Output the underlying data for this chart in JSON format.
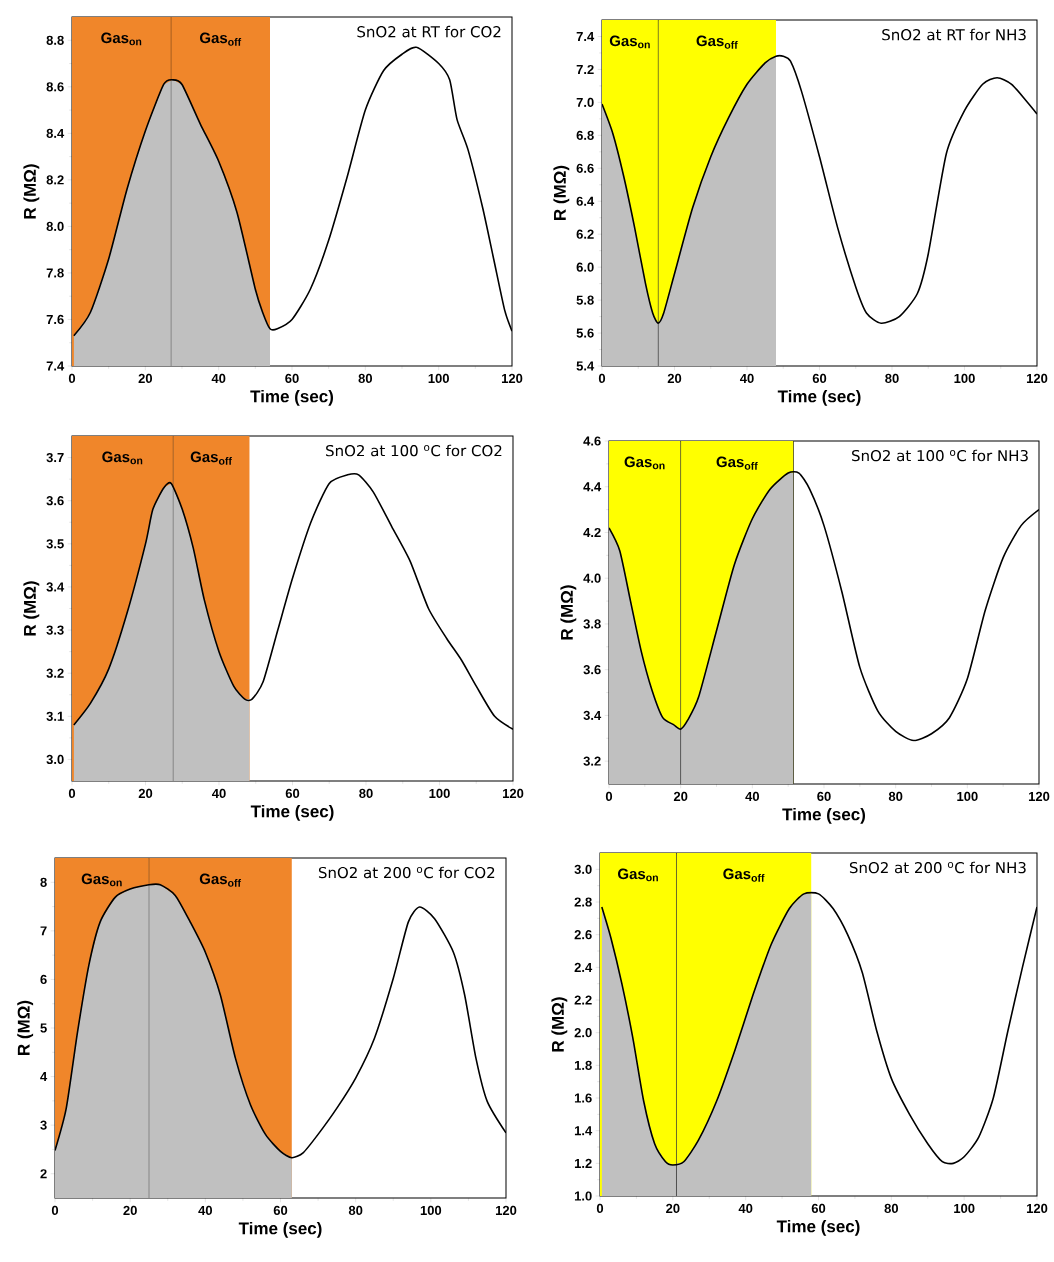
{
  "chart_data": [
    {
      "type": "line",
      "title": "SnO2 at RT for CO2",
      "xlabel": "Time (sec)",
      "ylabel": "R (MΩ)",
      "xlim": [
        0,
        120
      ],
      "ylim": [
        7.4,
        8.9
      ],
      "xticks": [
        0,
        20,
        40,
        60,
        80,
        100,
        120
      ],
      "yticks": [
        7.4,
        7.6,
        7.8,
        {
          "value": 8,
          "label": "8.0"
        },
        8.2,
        8.4,
        8.6,
        8.8
      ],
      "bands": [
        {
          "axis": "x",
          "from": 0,
          "to": 27,
          "label": "Gas$_{on}$",
          "color": "#f0862a"
        },
        {
          "axis": "x",
          "from": 27,
          "to": 54,
          "label": "Gas$_{off}$",
          "color": "#f0862a"
        }
      ],
      "ref_lines": [
        {
          "axis": "x",
          "value": 27,
          "color": "#000000"
        }
      ],
      "series": [
        {
          "type": "area",
          "color": "#c0c0c0",
          "x": [
            0.5,
            5,
            10,
            15,
            20,
            25,
            27.5,
            30,
            35,
            40,
            45,
            50,
            52,
            54
          ],
          "values": [
            7.53,
            7.63,
            7.86,
            8.16,
            8.41,
            8.61,
            8.63,
            8.61,
            8.44,
            8.28,
            8.06,
            7.73,
            7.63,
            7.56
          ]
        },
        {
          "color": "#000000",
          "x": [
            0.5,
            5,
            10,
            15,
            20,
            25,
            27.5,
            30,
            35,
            40,
            45,
            50,
            52,
            54,
            56,
            60,
            65,
            70,
            75,
            80,
            85,
            90,
            94,
            100,
            103,
            105,
            108,
            112,
            115,
            118,
            120
          ],
          "values": [
            7.53,
            7.63,
            7.86,
            8.16,
            8.41,
            8.61,
            8.63,
            8.61,
            8.44,
            8.28,
            8.06,
            7.73,
            7.63,
            7.56,
            7.56,
            7.6,
            7.73,
            7.94,
            8.21,
            8.5,
            8.67,
            8.74,
            8.77,
            8.7,
            8.63,
            8.46,
            8.33,
            8.08,
            7.86,
            7.64,
            7.55
          ]
        }
      ]
    },
    {
      "type": "line",
      "title": "SnO2 at RT for NH3",
      "xlabel": "Time (sec)",
      "ylabel": "R (MΩ)",
      "xlim": [
        0,
        120
      ],
      "ylim": [
        5.4,
        7.5
      ],
      "xticks": [
        0,
        20,
        40,
        60,
        80,
        100,
        120
      ],
      "yticks": [
        5.4,
        5.6,
        5.8,
        {
          "value": 6,
          "label": "6.0"
        },
        6.2,
        6.4,
        6.6,
        6.8,
        {
          "value": 7,
          "label": "7.0"
        },
        7.2,
        7.4
      ],
      "bands": [
        {
          "axis": "x",
          "from": 0,
          "to": 15.5,
          "label": "Gas$_{on}$",
          "color": "#ffff00"
        },
        {
          "axis": "x",
          "from": 15.5,
          "to": 48,
          "label": "Gas$_{off}$",
          "color": "#ffff00"
        }
      ],
      "ref_lines": [
        {
          "axis": "x",
          "value": 15.5,
          "color": "#000000"
        }
      ],
      "series": [
        {
          "type": "area",
          "color": "#c0c0c0",
          "x": [
            0,
            3,
            6,
            9,
            12,
            14,
            15.5,
            17,
            20,
            25,
            30,
            35,
            40,
            45,
            48
          ],
          "values": [
            6.99,
            6.81,
            6.55,
            6.24,
            5.9,
            5.72,
            5.66,
            5.72,
            5.96,
            6.36,
            6.67,
            6.91,
            7.11,
            7.24,
            7.28
          ]
        },
        {
          "color": "#000000",
          "x": [
            0,
            3,
            6,
            9,
            12,
            14,
            15.5,
            17,
            20,
            25,
            30,
            35,
            40,
            45,
            48,
            50,
            52,
            55,
            60,
            65,
            70,
            73,
            77,
            82,
            87,
            90,
            95,
            100,
            105,
            109,
            113,
            117,
            120
          ],
          "values": [
            6.99,
            6.81,
            6.55,
            6.24,
            5.9,
            5.72,
            5.66,
            5.72,
            5.96,
            6.36,
            6.67,
            6.91,
            7.11,
            7.24,
            7.28,
            7.28,
            7.25,
            7.07,
            6.67,
            6.24,
            5.88,
            5.72,
            5.66,
            5.7,
            5.84,
            6.08,
            6.69,
            6.95,
            7.11,
            7.15,
            7.11,
            7.01,
            6.93
          ]
        }
      ]
    },
    {
      "type": "line",
      "title": "SnO2 at 100 $^{o}$C  for CO2",
      "xlabel": "Time (sec)",
      "ylabel": "R (MΩ)",
      "xlim": [
        0,
        120
      ],
      "ylim": [
        2.95,
        3.75
      ],
      "xticks": [
        0,
        20,
        40,
        60,
        80,
        100,
        120
      ],
      "yticks": [
        {
          "value": 3,
          "label": "3.0"
        },
        3.1,
        3.2,
        3.3,
        3.4,
        3.5,
        3.6,
        3.7
      ],
      "bands": [
        {
          "axis": "x",
          "from": 0,
          "to": 27.5,
          "label": "Gas$_{on}$",
          "color": "#f0862a"
        },
        {
          "axis": "x",
          "from": 27.5,
          "to": 48.3,
          "label": "Gas$_{off}$",
          "color": "#f0862a"
        }
      ],
      "ref_lines": [
        {
          "axis": "x",
          "value": 27.5,
          "color": "#000000"
        }
      ],
      "series": [
        {
          "type": "area",
          "color": "#c0c0c0",
          "x": [
            0.5,
            5,
            10,
            15,
            20,
            22,
            25,
            27,
            30,
            33,
            36,
            40,
            44,
            47,
            48.3
          ],
          "values": [
            3.08,
            3.13,
            3.21,
            3.34,
            3.5,
            3.58,
            3.63,
            3.64,
            3.58,
            3.49,
            3.37,
            3.25,
            3.17,
            3.14,
            3.14
          ]
        },
        {
          "color": "#000000",
          "x": [
            0.5,
            5,
            10,
            15,
            20,
            22,
            25,
            27,
            30,
            33,
            36,
            40,
            44,
            47,
            49,
            52,
            56,
            60,
            65,
            70,
            75,
            78,
            82,
            87,
            92,
            97,
            102,
            106,
            110,
            115,
            120
          ],
          "values": [
            3.08,
            3.13,
            3.21,
            3.34,
            3.5,
            3.58,
            3.63,
            3.64,
            3.58,
            3.49,
            3.37,
            3.25,
            3.17,
            3.14,
            3.14,
            3.18,
            3.3,
            3.42,
            3.55,
            3.64,
            3.66,
            3.66,
            3.62,
            3.54,
            3.46,
            3.35,
            3.28,
            3.23,
            3.17,
            3.1,
            3.07
          ]
        }
      ]
    },
    {
      "type": "line",
      "title": "SnO2 at 100 $^{o}$C  for NH3",
      "xlabel": "Time (sec)",
      "ylabel": "R (MΩ)",
      "xlim": [
        0,
        120
      ],
      "ylim": [
        3.1,
        4.6
      ],
      "xticks": [
        0,
        20,
        40,
        60,
        80,
        100,
        120
      ],
      "yticks": [
        3.2,
        3.4,
        3.6,
        3.8,
        {
          "value": 4,
          "label": "4.0"
        },
        4.2,
        4.4,
        4.6
      ],
      "bands": [
        {
          "axis": "x",
          "from": 0,
          "to": 20,
          "label": "Gas$_{on}$",
          "color": "#ffff00"
        },
        {
          "axis": "x",
          "from": 20,
          "to": 51.5,
          "label": "Gas$_{off}$",
          "color": "#ffff00"
        }
      ],
      "ref_lines": [
        {
          "axis": "x",
          "value": 20,
          "color": "#000000"
        },
        {
          "axis": "x",
          "value": 51.5,
          "color": "#000000"
        }
      ],
      "series": [
        {
          "type": "area",
          "color": "#c0c0c0",
          "x": [
            0,
            3,
            6,
            9,
            12,
            15,
            18,
            20,
            22,
            25,
            30,
            35,
            40,
            45,
            50,
            51.5
          ],
          "values": [
            4.22,
            4.12,
            3.9,
            3.68,
            3.51,
            3.39,
            3.36,
            3.34,
            3.38,
            3.48,
            3.77,
            4.06,
            4.26,
            4.39,
            4.46,
            4.46
          ]
        },
        {
          "color": "#000000",
          "x": [
            0,
            3,
            6,
            9,
            12,
            15,
            18,
            20,
            22,
            25,
            30,
            35,
            40,
            45,
            50,
            53,
            56,
            60,
            65,
            70,
            75,
            80,
            85,
            90,
            95,
            100,
            105,
            110,
            115,
            120
          ],
          "values": [
            4.22,
            4.12,
            3.9,
            3.68,
            3.51,
            3.39,
            3.36,
            3.34,
            3.38,
            3.48,
            3.77,
            4.06,
            4.26,
            4.39,
            4.46,
            4.46,
            4.39,
            4.23,
            3.94,
            3.61,
            3.42,
            3.33,
            3.29,
            3.32,
            3.39,
            3.56,
            3.86,
            4.09,
            4.23,
            4.3
          ]
        }
      ]
    },
    {
      "type": "line",
      "title": "SnO2 at 200 $^{o}$C  for CO2",
      "xlabel": "Time (sec)",
      "ylabel": "R (MΩ)",
      "xlim": [
        0,
        120
      ],
      "ylim": [
        1.5,
        8.5
      ],
      "xticks": [
        0,
        20,
        40,
        60,
        80,
        100,
        120
      ],
      "yticks": [
        2,
        3,
        4,
        5,
        6,
        7,
        8
      ],
      "bands": [
        {
          "axis": "x",
          "from": 0,
          "to": 25,
          "label": "Gas$_{on}$",
          "color": "#f0862a"
        },
        {
          "axis": "x",
          "from": 25,
          "to": 63,
          "label": "Gas$_{off}$",
          "color": "#f0862a"
        }
      ],
      "ref_lines": [
        {
          "axis": "x",
          "value": 25,
          "color": "#000000"
        }
      ],
      "series": [
        {
          "type": "area",
          "color": "#c0c0c0",
          "x": [
            0,
            3,
            6,
            9,
            12,
            16,
            20,
            25,
            28,
            32,
            36,
            40,
            44,
            48,
            52,
            56,
            60,
            63
          ],
          "values": [
            2.48,
            3.35,
            4.92,
            6.29,
            7.18,
            7.69,
            7.86,
            7.95,
            7.95,
            7.73,
            7.18,
            6.56,
            5.68,
            4.38,
            3.42,
            2.81,
            2.46,
            2.33
          ]
        },
        {
          "color": "#000000",
          "x": [
            0,
            3,
            6,
            9,
            12,
            16,
            20,
            25,
            28,
            32,
            36,
            40,
            44,
            48,
            52,
            56,
            60,
            63,
            66,
            70,
            75,
            80,
            85,
            90,
            94,
            97,
            101,
            106,
            109,
            112,
            115,
            120
          ],
          "values": [
            2.48,
            3.35,
            4.92,
            6.29,
            7.18,
            7.69,
            7.86,
            7.95,
            7.95,
            7.73,
            7.18,
            6.56,
            5.68,
            4.38,
            3.42,
            2.81,
            2.46,
            2.33,
            2.43,
            2.81,
            3.35,
            3.97,
            4.79,
            6.02,
            7.18,
            7.49,
            7.25,
            6.56,
            5.68,
            4.38,
            3.49,
            2.84
          ]
        }
      ]
    },
    {
      "type": "line",
      "title": "SnO2 at 200 $^{o}$C for NH3",
      "xlabel": "Time (sec)",
      "ylabel": "R (MΩ)",
      "xlim": [
        0,
        120
      ],
      "ylim": [
        1.0,
        3.1
      ],
      "xticks": [
        0,
        20,
        40,
        60,
        80,
        100,
        120
      ],
      "yticks": [
        {
          "value": 1,
          "label": "1.0"
        },
        1.2,
        1.4,
        1.6,
        1.8,
        {
          "value": 2,
          "label": "2.0"
        },
        2.2,
        2.4,
        2.6,
        2.8,
        {
          "value": 3,
          "label": "3.0"
        }
      ],
      "bands": [
        {
          "axis": "x",
          "from": 0,
          "to": 21,
          "label": "Gas$_{on}$",
          "color": "#ffff00"
        },
        {
          "axis": "x",
          "from": 21,
          "to": 58,
          "label": "Gas$_{off}$",
          "color": "#ffff00"
        }
      ],
      "ref_lines": [
        {
          "axis": "x",
          "value": 21,
          "color": "#000000"
        }
      ],
      "series": [
        {
          "type": "area",
          "color": "#c0c0c0",
          "x": [
            0.5,
            3,
            6,
            9,
            12,
            15,
            18,
            20,
            23,
            27,
            32,
            37,
            42,
            47,
            52,
            56,
            58
          ],
          "values": [
            2.77,
            2.58,
            2.3,
            1.97,
            1.58,
            1.32,
            1.21,
            1.19,
            1.21,
            1.34,
            1.58,
            1.89,
            2.23,
            2.54,
            2.76,
            2.85,
            2.85
          ]
        },
        {
          "color": "#000000",
          "x": [
            0.5,
            3,
            6,
            9,
            12,
            15,
            18,
            20,
            23,
            27,
            32,
            37,
            42,
            47,
            52,
            56,
            60,
            64,
            68,
            72,
            76,
            80,
            85,
            90,
            94,
            97,
            100,
            104,
            108,
            112,
            116,
            120
          ],
          "values": [
            2.77,
            2.58,
            2.3,
            1.97,
            1.58,
            1.32,
            1.21,
            1.19,
            1.21,
            1.34,
            1.58,
            1.89,
            2.23,
            2.54,
            2.76,
            2.85,
            2.85,
            2.76,
            2.6,
            2.37,
            2.01,
            1.72,
            1.5,
            1.32,
            1.21,
            1.2,
            1.24,
            1.36,
            1.6,
            2.01,
            2.4,
            2.77
          ]
        }
      ]
    }
  ]
}
